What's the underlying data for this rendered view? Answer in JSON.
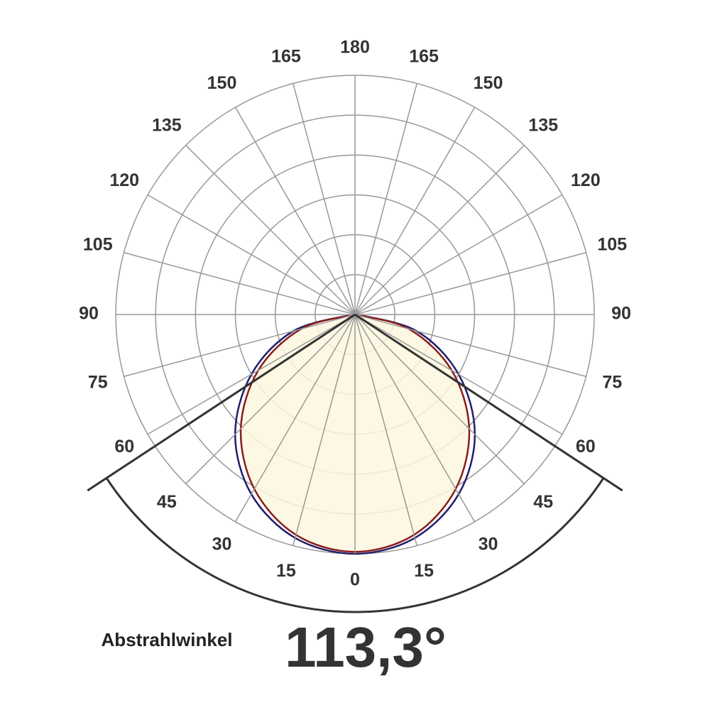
{
  "chart_data": {
    "type": "polar",
    "angle_ticks": [
      0,
      15,
      30,
      45,
      60,
      75,
      90,
      105,
      120,
      135,
      150,
      165,
      180
    ],
    "rlim": [
      0,
      6
    ],
    "rticks": [
      1,
      2,
      3,
      4,
      5,
      6
    ],
    "x": [
      -90,
      -75,
      -60,
      -45,
      -30,
      -15,
      0,
      15,
      30,
      45,
      60,
      75,
      90
    ],
    "series": [
      {
        "color": "#1f1f6b",
        "values": [
          0.05,
          1.6,
          3.0,
          4.25,
          5.2,
          5.8,
          6.0,
          5.8,
          5.2,
          4.25,
          3.0,
          1.6,
          0.05
        ]
      },
      {
        "color": "#8a1c1c",
        "fill": "#fcf7de",
        "values": [
          0,
          1.4,
          2.8,
          4.05,
          5.05,
          5.72,
          5.95,
          5.72,
          5.05,
          4.05,
          2.8,
          1.4,
          0
        ]
      }
    ],
    "beam_label": "Abstrahlwinkel",
    "beam_angle": {
      "value": 113.3,
      "label": "113,3°"
    }
  }
}
